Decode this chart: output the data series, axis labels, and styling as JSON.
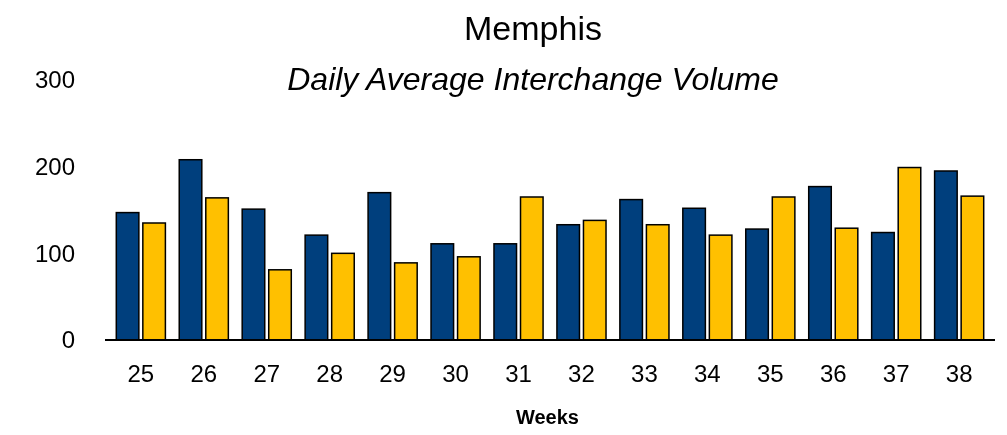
{
  "chart_data": {
    "type": "bar",
    "title": "Memphis",
    "subtitle": "Daily Average Interchange Volume",
    "xlabel": "Weeks",
    "categories": [
      "25",
      "26",
      "27",
      "28",
      "29",
      "30",
      "31",
      "32",
      "33",
      "34",
      "35",
      "36",
      "37",
      "38"
    ],
    "series": [
      {
        "color": "#003f7d",
        "values": [
          147,
          208,
          151,
          121,
          170,
          111,
          111,
          133,
          162,
          152,
          128,
          177,
          124,
          195
        ]
      },
      {
        "color": "#ffc000",
        "values": [
          135,
          164,
          81,
          100,
          89,
          96,
          165,
          138,
          133,
          121,
          165,
          129,
          199,
          166
        ]
      }
    ],
    "ylim": [
      0,
      300
    ],
    "yticks": [
      0,
      100,
      200,
      300
    ],
    "grid": false
  }
}
